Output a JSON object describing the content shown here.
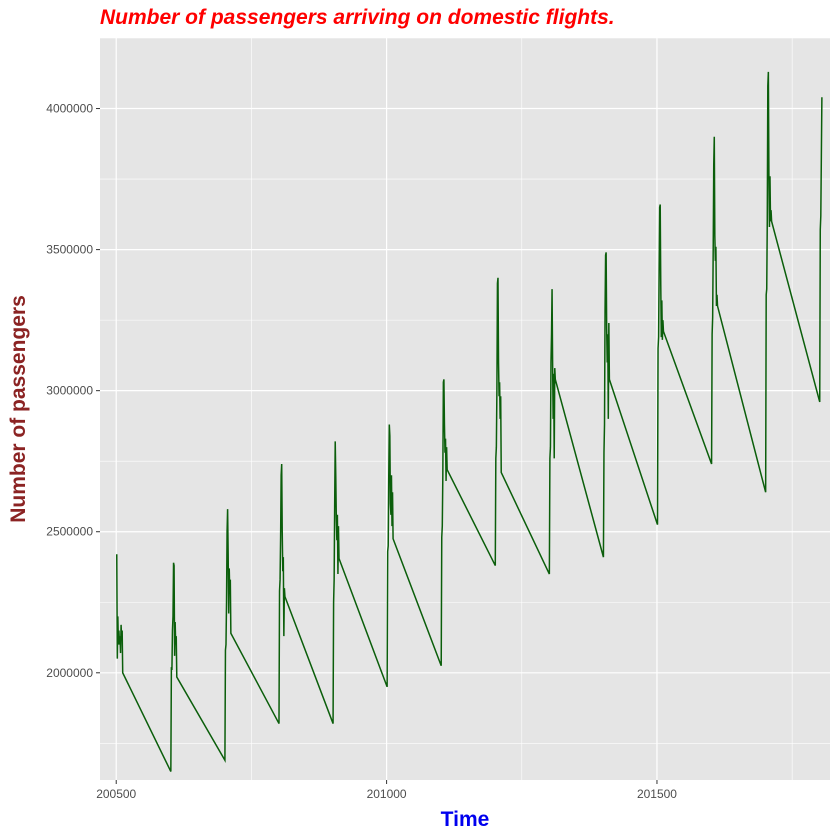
{
  "colors": {
    "title": "#ff0000",
    "xlabel": "#0000ee",
    "ylabel": "#8b2323",
    "line": "#0b5e0b",
    "panel_background": "#e5e5e5",
    "grid": "#ffffff",
    "tick_text": "#4d4d4d"
  },
  "chart_data": {
    "type": "line",
    "title": "Number of passengers arriving on domestic flights.",
    "xlabel": "Time",
    "ylabel": "Number of passengers",
    "xlim": [
      200470,
      201820
    ],
    "ylim": [
      1620000,
      4250000
    ],
    "x_ticks": [
      200500,
      201000,
      201500
    ],
    "x_tick_labels": [
      "200500",
      "201000",
      "201500"
    ],
    "y_ticks": [
      2000000,
      2500000,
      3000000,
      3500000,
      4000000
    ],
    "y_tick_labels": [
      "2000000",
      "2500000",
      "3000000",
      "3500000",
      "4000000"
    ],
    "grid": true,
    "legend": "none",
    "series": [
      {
        "x": [
          200501,
          200502,
          200503,
          200504,
          200505,
          200506,
          200507,
          200508,
          200509,
          200510,
          200511,
          200512,
          200601,
          200602,
          200603,
          200604,
          200605,
          200606,
          200607,
          200608,
          200609,
          200610,
          200611,
          200612,
          200701,
          200702,
          200703,
          200704,
          200705,
          200706,
          200707,
          200708,
          200709,
          200710,
          200711,
          200712,
          200801,
          200802,
          200803,
          200804,
          200805,
          200806,
          200807,
          200808,
          200809,
          200810,
          200811,
          200812,
          200901,
          200902,
          200903,
          200904,
          200905,
          200906,
          200907,
          200908,
          200909,
          200910,
          200911,
          200912,
          201001,
          201002,
          201003,
          201004,
          201005,
          201006,
          201007,
          201008,
          201009,
          201010,
          201011,
          201012,
          201101,
          201102,
          201103,
          201104,
          201105,
          201106,
          201107,
          201108,
          201109,
          201110,
          201111,
          201112,
          201201,
          201202,
          201203,
          201204,
          201205,
          201206,
          201207,
          201208,
          201209,
          201210,
          201211,
          201212,
          201301,
          201302,
          201303,
          201304,
          201305,
          201306,
          201307,
          201308,
          201309,
          201310,
          201311,
          201312,
          201401,
          201402,
          201403,
          201404,
          201405,
          201406,
          201407,
          201408,
          201409,
          201410,
          201411,
          201412,
          201501,
          201502,
          201503,
          201504,
          201505,
          201506,
          201507,
          201508,
          201509,
          201510,
          201511,
          201512,
          201601,
          201602,
          201603,
          201604,
          201605,
          201606,
          201607,
          201608,
          201609,
          201610,
          201611,
          201612,
          201701,
          201702,
          201703,
          201704,
          201705,
          201706,
          201707,
          201708,
          201709,
          201710,
          201711,
          201712,
          201801,
          201802,
          201803,
          201804,
          201805
        ],
        "y": [
          2420000,
          2050000,
          2200000,
          2100000,
          2150000,
          2100000,
          2130000,
          2070000,
          2170000,
          2120000,
          2150000,
          2000000,
          1650000,
          2020000,
          2010000,
          2150000,
          2200000,
          2390000,
          2380000,
          2060000,
          2180000,
          2100000,
          2130000,
          1985000,
          1690000,
          2080000,
          2100000,
          2250000,
          2500000,
          2580000,
          2420000,
          2210000,
          2370000,
          2280000,
          2330000,
          2140000,
          1820000,
          2290000,
          2330000,
          2480000,
          2700000,
          2740000,
          2500000,
          2360000,
          2410000,
          2130000,
          2300000,
          2270000,
          1820000,
          2250000,
          2330000,
          2600000,
          2820000,
          2700000,
          2550000,
          2470000,
          2560000,
          2350000,
          2520000,
          2405000,
          1950000,
          2430000,
          2450000,
          2700000,
          2880000,
          2840000,
          2600000,
          2560000,
          2700000,
          2520000,
          2640000,
          2475000,
          2025000,
          2480000,
          2520000,
          2700000,
          3030000,
          3040000,
          2880000,
          2780000,
          2830000,
          2680000,
          2800000,
          2720000,
          2380000,
          2760000,
          2800000,
          3000000,
          3380000,
          3400000,
          3100000,
          2980000,
          3030000,
          2900000,
          2980000,
          2710000,
          2350000,
          2760000,
          2800000,
          3100000,
          3200000,
          3360000,
          3100000,
          2900000,
          3060000,
          2760000,
          3080000,
          3040000,
          2410000,
          2780000,
          2880000,
          3280000,
          3480000,
          3490000,
          3220000,
          3100000,
          3200000,
          2900000,
          3240000,
          3040000,
          2525000,
          3150000,
          3190000,
          3420000,
          3650000,
          3660000,
          3380000,
          3190000,
          3320000,
          3180000,
          3250000,
          3210000,
          2740000,
          3200000,
          3260000,
          3500000,
          3800000,
          3900000,
          3550000,
          3460000,
          3510000,
          3300000,
          3340000,
          3300000,
          2640000,
          3340000,
          3360000,
          3600000,
          4080000,
          4130000,
          3770000,
          3580000,
          3760000,
          3600000,
          3640000,
          3600000,
          2960000,
          3570000,
          3620000,
          3830000,
          4040000
        ]
      }
    ]
  }
}
